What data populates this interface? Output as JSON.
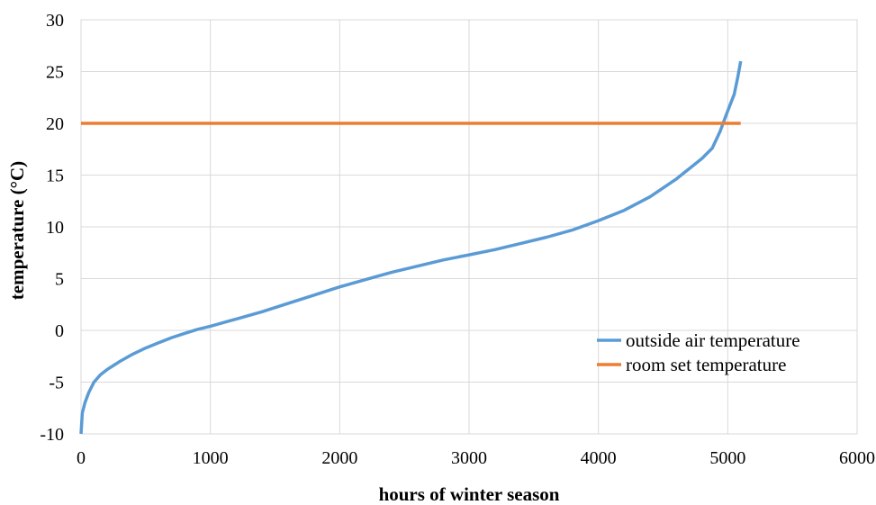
{
  "chart_data": {
    "type": "line",
    "title": "",
    "xlabel": "hours of winter season",
    "ylabel": "temperature (°C)",
    "xlim": [
      0,
      6000
    ],
    "ylim": [
      -10,
      30
    ],
    "x_ticks": [
      0,
      1000,
      2000,
      3000,
      4000,
      5000,
      6000
    ],
    "y_ticks": [
      -10,
      -5,
      0,
      5,
      10,
      15,
      20,
      25,
      30
    ],
    "x_tick_labels": [
      "0",
      "1000",
      "2000",
      "3000",
      "4000",
      "5000",
      "6000"
    ],
    "y_tick_labels": [
      "-10",
      "-5",
      "0",
      "5",
      "10",
      "15",
      "20",
      "25",
      "30"
    ],
    "grid": true,
    "legend_position": "bottom-right",
    "series": [
      {
        "name": "outside air temperature",
        "color": "#5b9bd5",
        "x": [
          0,
          10,
          30,
          60,
          100,
          150,
          200,
          300,
          400,
          500,
          600,
          700,
          800,
          900,
          1000,
          1200,
          1400,
          1600,
          1800,
          2000,
          2200,
          2400,
          2600,
          2800,
          3000,
          3200,
          3400,
          3600,
          3800,
          4000,
          4200,
          4400,
          4600,
          4800,
          4880,
          4940,
          5000,
          5050,
          5080,
          5100
        ],
        "y": [
          -10,
          -8,
          -7,
          -6,
          -5,
          -4.3,
          -3.8,
          -3,
          -2.3,
          -1.7,
          -1.2,
          -0.7,
          -0.3,
          0.1,
          0.4,
          1.1,
          1.8,
          2.6,
          3.4,
          4.2,
          4.9,
          5.6,
          6.2,
          6.8,
          7.3,
          7.8,
          8.4,
          9,
          9.7,
          10.6,
          11.6,
          12.9,
          14.6,
          16.6,
          17.6,
          19.2,
          21.2,
          22.8,
          24.6,
          26
        ]
      },
      {
        "name": "room set temperature",
        "color": "#ed7d31",
        "x": [
          0,
          5100
        ],
        "y": [
          20,
          20
        ]
      }
    ]
  }
}
